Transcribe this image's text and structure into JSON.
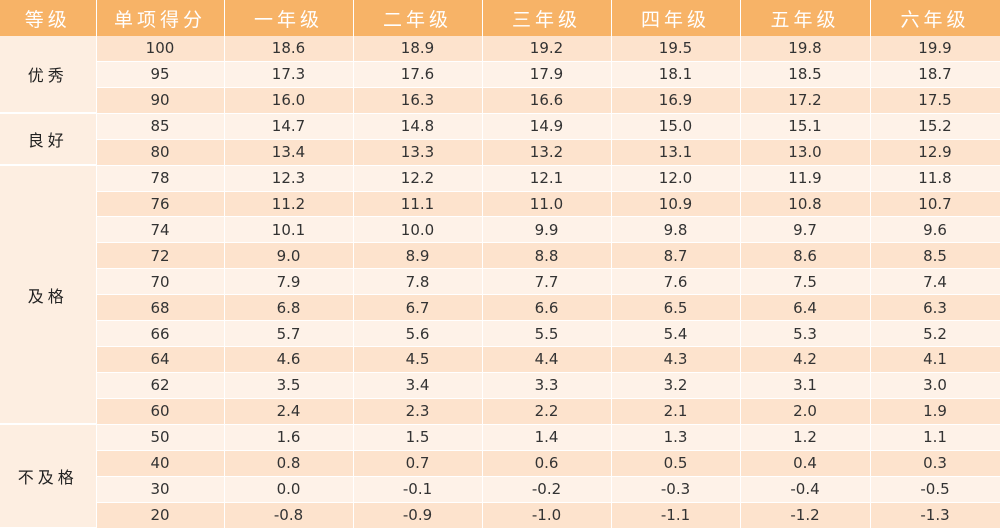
{
  "headers": [
    "等级",
    "单项得分",
    "一年级",
    "二年级",
    "三年级",
    "四年级",
    "五年级",
    "六年级"
  ],
  "groups": [
    {
      "grade": "优秀",
      "rows": [
        {
          "score": "100",
          "values": [
            "18.6",
            "18.9",
            "19.2",
            "19.5",
            "19.8",
            "19.9"
          ]
        },
        {
          "score": "95",
          "values": [
            "17.3",
            "17.6",
            "17.9",
            "18.1",
            "18.5",
            "18.7"
          ]
        },
        {
          "score": "90",
          "values": [
            "16.0",
            "16.3",
            "16.6",
            "16.9",
            "17.2",
            "17.5"
          ]
        }
      ]
    },
    {
      "grade": "良好",
      "rows": [
        {
          "score": "85",
          "values": [
            "14.7",
            "14.8",
            "14.9",
            "15.0",
            "15.1",
            "15.2"
          ]
        },
        {
          "score": "80",
          "values": [
            "13.4",
            "13.3",
            "13.2",
            "13.1",
            "13.0",
            "12.9"
          ]
        }
      ]
    },
    {
      "grade": "及格",
      "rows": [
        {
          "score": "78",
          "values": [
            "12.3",
            "12.2",
            "12.1",
            "12.0",
            "11.9",
            "11.8"
          ]
        },
        {
          "score": "76",
          "values": [
            "11.2",
            "11.1",
            "11.0",
            "10.9",
            "10.8",
            "10.7"
          ]
        },
        {
          "score": "74",
          "values": [
            "10.1",
            "10.0",
            "9.9",
            "9.8",
            "9.7",
            "9.6"
          ]
        },
        {
          "score": "72",
          "values": [
            "9.0",
            "8.9",
            "8.8",
            "8.7",
            "8.6",
            "8.5"
          ]
        },
        {
          "score": "70",
          "values": [
            "7.9",
            "7.8",
            "7.7",
            "7.6",
            "7.5",
            "7.4"
          ]
        },
        {
          "score": "68",
          "values": [
            "6.8",
            "6.7",
            "6.6",
            "6.5",
            "6.4",
            "6.3"
          ]
        },
        {
          "score": "66",
          "values": [
            "5.7",
            "5.6",
            "5.5",
            "5.4",
            "5.3",
            "5.2"
          ]
        },
        {
          "score": "64",
          "values": [
            "4.6",
            "4.5",
            "4.4",
            "4.3",
            "4.2",
            "4.1"
          ]
        },
        {
          "score": "62",
          "values": [
            "3.5",
            "3.4",
            "3.3",
            "3.2",
            "3.1",
            "3.0"
          ]
        },
        {
          "score": "60",
          "values": [
            "2.4",
            "2.3",
            "2.2",
            "2.1",
            "2.0",
            "1.9"
          ]
        }
      ]
    },
    {
      "grade": "不及格",
      "rows": [
        {
          "score": "50",
          "values": [
            "1.6",
            "1.5",
            "1.4",
            "1.3",
            "1.2",
            "1.1"
          ]
        },
        {
          "score": "40",
          "values": [
            "0.8",
            "0.7",
            "0.6",
            "0.5",
            "0.4",
            "0.3"
          ]
        },
        {
          "score": "30",
          "values": [
            "0.0",
            "-0.1",
            "-0.2",
            "-0.3",
            "-0.4",
            "-0.5"
          ]
        },
        {
          "score": "20",
          "values": [
            "-0.8",
            "-0.9",
            "-1.0",
            "-1.1",
            "-1.2",
            "-1.3"
          ]
        }
      ]
    }
  ],
  "colors": {
    "header_bg": "#f7b367",
    "row_odd": "#fde3cd",
    "row_even": "#fef2e8",
    "grade_bg": "#fdeee1"
  }
}
